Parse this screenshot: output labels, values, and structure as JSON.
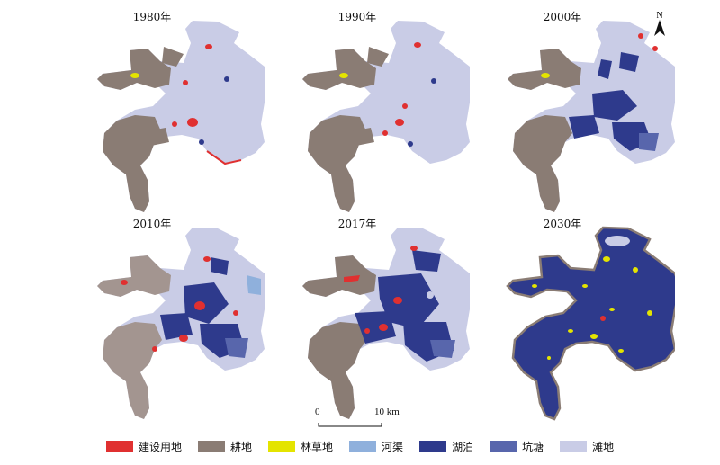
{
  "panels": [
    {
      "year": "1980年",
      "stage": "early"
    },
    {
      "year": "1990年",
      "stage": "early"
    },
    {
      "year": "2000年",
      "stage": "mid"
    },
    {
      "year": "2010年",
      "stage": "late"
    },
    {
      "year": "2017年",
      "stage": "late"
    },
    {
      "year": "2030年",
      "stage": "future"
    }
  ],
  "north_label": "N",
  "scale": {
    "start_label": "0",
    "end_label": "10 km"
  },
  "legend": [
    {
      "label": "建设用地",
      "color": "#e03030"
    },
    {
      "label": "耕地",
      "color": "#8a7c74"
    },
    {
      "label": "林草地",
      "color": "#e4e400"
    },
    {
      "label": "河渠",
      "color": "#8fb0dc"
    },
    {
      "label": "湖泊",
      "color": "#2e3a8c"
    },
    {
      "label": "坑塘",
      "color": "#5866ac"
    },
    {
      "label": "滩地",
      "color": "#c9cce6"
    }
  ]
}
